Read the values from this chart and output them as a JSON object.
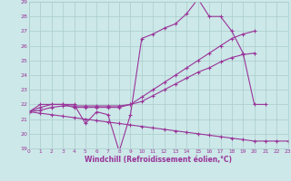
{
  "background_color": "#cce8e8",
  "grid_color": "#aacccc",
  "line_color": "#993399",
  "xlabel": "Windchill (Refroidissement éolien,°C)",
  "ylim": [
    19,
    29
  ],
  "xlim": [
    0,
    23
  ],
  "yticks": [
    19,
    20,
    21,
    22,
    23,
    24,
    25,
    26,
    27,
    28,
    29
  ],
  "xticks": [
    0,
    1,
    2,
    3,
    4,
    5,
    6,
    7,
    8,
    9,
    10,
    11,
    12,
    13,
    14,
    15,
    16,
    17,
    18,
    19,
    20,
    21,
    22,
    23
  ],
  "series": [
    {
      "x": [
        0,
        1,
        2,
        3,
        4,
        5,
        6,
        7,
        8,
        9,
        10,
        11,
        12,
        13,
        14,
        15,
        16,
        17,
        18,
        19,
        20,
        21
      ],
      "y": [
        21.5,
        22.0,
        22.0,
        22.0,
        22.0,
        20.7,
        21.5,
        21.3,
        18.8,
        21.3,
        26.5,
        26.8,
        27.2,
        27.5,
        28.2,
        29.2,
        28.0,
        28.0,
        27.0,
        25.5,
        22.0,
        22.0
      ]
    },
    {
      "x": [
        0,
        1,
        2,
        3,
        4,
        5,
        6,
        7,
        8,
        9,
        10,
        11,
        12,
        13,
        14,
        15,
        16,
        17,
        18,
        19,
        20
      ],
      "y": [
        21.5,
        21.8,
        22.0,
        22.0,
        21.8,
        21.8,
        21.8,
        21.8,
        21.8,
        22.0,
        22.5,
        23.0,
        23.5,
        24.0,
        24.5,
        25.0,
        25.5,
        26.0,
        26.5,
        26.8,
        27.0
      ]
    },
    {
      "x": [
        0,
        1,
        2,
        3,
        4,
        5,
        6,
        7,
        8,
        9,
        10,
        11,
        12,
        13,
        14,
        15,
        16,
        17,
        18,
        19,
        20
      ],
      "y": [
        21.5,
        21.6,
        21.8,
        21.9,
        21.9,
        21.9,
        21.9,
        21.9,
        21.9,
        22.0,
        22.2,
        22.6,
        23.0,
        23.4,
        23.8,
        24.2,
        24.5,
        24.9,
        25.2,
        25.4,
        25.5
      ]
    },
    {
      "x": [
        0,
        1,
        2,
        3,
        4,
        5,
        6,
        7,
        8,
        9,
        10,
        11,
        12,
        13,
        14,
        15,
        16,
        17,
        18,
        19,
        20,
        21,
        22,
        23
      ],
      "y": [
        21.5,
        21.4,
        21.3,
        21.2,
        21.1,
        21.0,
        20.9,
        20.8,
        20.7,
        20.6,
        20.5,
        20.4,
        20.3,
        20.2,
        20.1,
        20.0,
        19.9,
        19.8,
        19.7,
        19.6,
        19.5,
        19.5,
        19.5,
        19.5
      ]
    }
  ]
}
